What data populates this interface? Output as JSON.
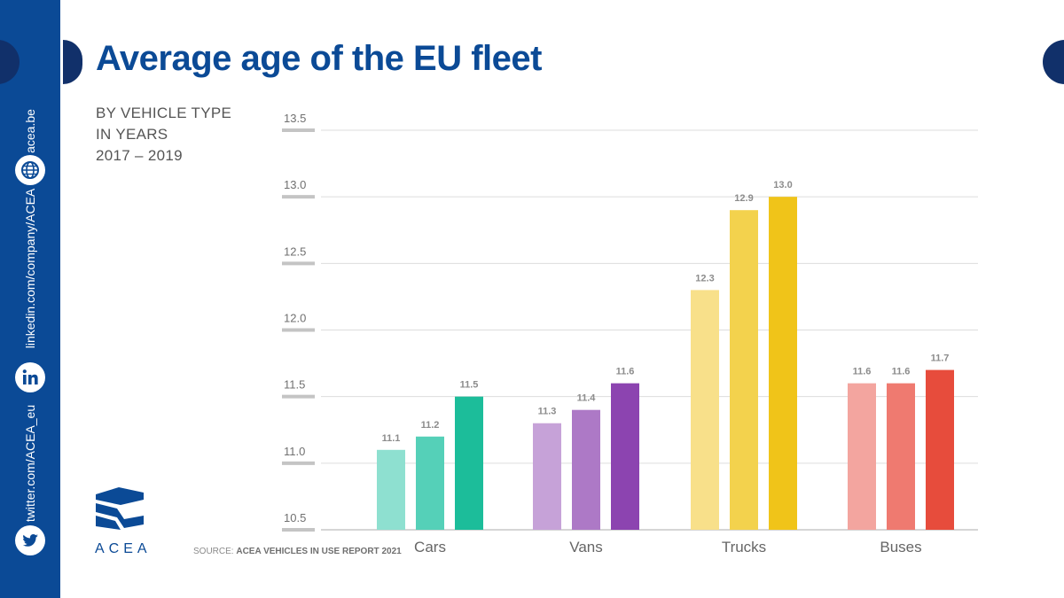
{
  "title": "Average age of the EU fleet",
  "subtitle": [
    "BY VEHICLE TYPE",
    "IN YEARS",
    "2017 – 2019"
  ],
  "sidebar": {
    "website": "acea.be",
    "linkedin": "linkedin.com/company/ACEA",
    "twitter": "twitter.com/ACEA_eu",
    "icons": [
      "globe-icon",
      "linkedin-icon",
      "twitter-icon"
    ],
    "color": "#0b4a96"
  },
  "logo": {
    "text": "ACEA"
  },
  "source": {
    "prefix": "SOURCE:",
    "text": "ACEA VEHICLES IN USE REPORT 2021"
  },
  "chart_data": {
    "type": "bar",
    "categories": [
      "Cars",
      "Vans",
      "Trucks",
      "Buses"
    ],
    "series": [
      {
        "values": [
          11.1,
          11.3,
          12.3,
          11.6
        ]
      },
      {
        "values": [
          11.2,
          11.4,
          12.9,
          11.6
        ]
      },
      {
        "values": [
          11.5,
          11.6,
          13.0,
          11.7
        ]
      }
    ],
    "data_labels": [
      [
        "11.1",
        "11.3",
        "12.3",
        "11.6"
      ],
      [
        "11.2",
        "11.4",
        "12.9",
        "11.6"
      ],
      [
        "11.5",
        "11.6",
        "13.0",
        "11.7"
      ]
    ],
    "colors": [
      [
        "#8ee0d0",
        "#55d0b8",
        "#1cbd9a"
      ],
      [
        "#c6a2d8",
        "#ad79c6",
        "#8c44b0"
      ],
      [
        "#f8e08a",
        "#f3d24d",
        "#f0c419"
      ],
      [
        "#f3a59f",
        "#ef7a70",
        "#e74c3c"
      ]
    ],
    "yticks": [
      "10.5",
      "11.0",
      "11.5",
      "12.0",
      "12.5",
      "13.0",
      "13.5"
    ],
    "ylim": [
      10.5,
      13.5
    ],
    "grid": true,
    "xlabel": "",
    "ylabel": ""
  }
}
